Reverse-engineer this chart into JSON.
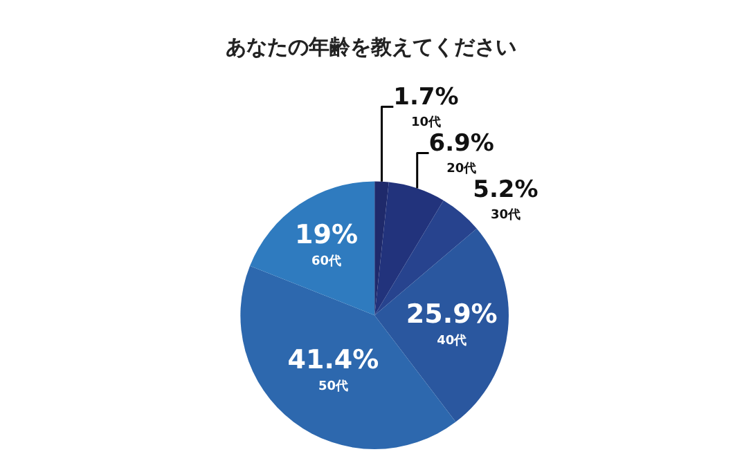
{
  "chart_data": {
    "type": "pie",
    "title": "あなたの年齢を教えてください",
    "categories": [
      "10代",
      "20代",
      "30代",
      "40代",
      "50代",
      "60代"
    ],
    "values": [
      1.7,
      6.9,
      5.2,
      25.9,
      41.4,
      19
    ],
    "value_labels": [
      "1.7%",
      "6.9%",
      "5.2%",
      "25.9%",
      "41.4%",
      "19%"
    ],
    "colors": [
      "#1f2a6b",
      "#22337c",
      "#27438e",
      "#2a579f",
      "#2d68ae",
      "#2f7bbf"
    ],
    "legend": false
  }
}
